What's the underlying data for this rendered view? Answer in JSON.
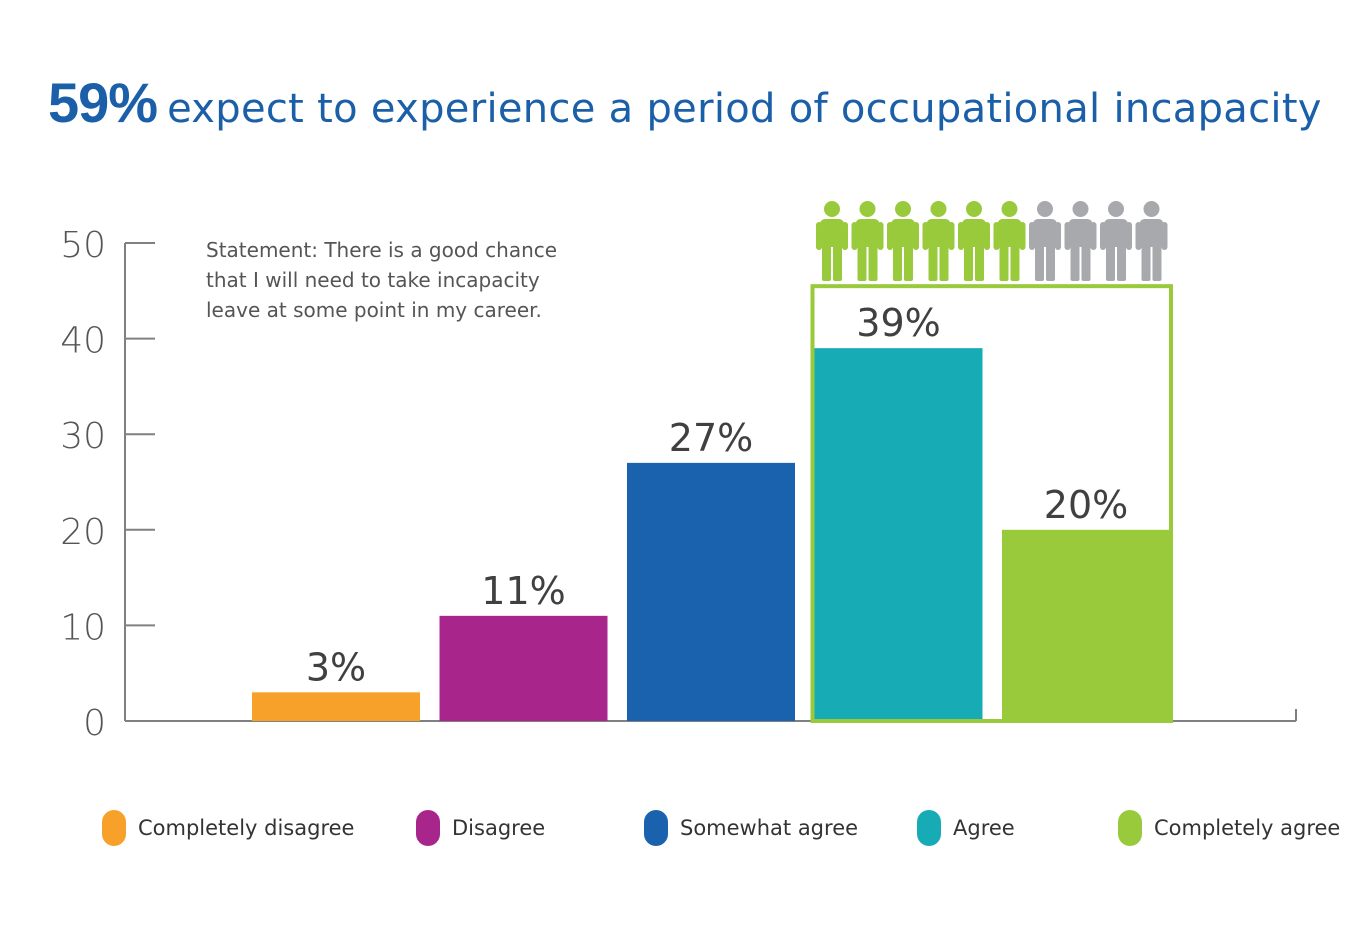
{
  "title": {
    "highlight": "59%",
    "text": "expect to experience a period of occupational incapacity"
  },
  "statement": [
    "Statement: There is a good chance",
    "that I will need to take incapacity",
    "leave at some point in my career."
  ],
  "colors": {
    "title": "#1a5fa8",
    "axis": "#808080",
    "highlight_box": "#99ca3c",
    "person_green": "#99ca3c",
    "person_grey": "#a7a9ac"
  },
  "people_icons": {
    "total": 10,
    "highlighted": 6,
    "icon": "person-icon"
  },
  "chart_data": {
    "type": "bar",
    "categories": [
      "Completely disagree",
      "Disagree",
      "Somewhat agree",
      "Agree",
      "Completely agree"
    ],
    "values": [
      3,
      11,
      27,
      39,
      20
    ],
    "value_labels": [
      "3%",
      "11%",
      "27%",
      "39%",
      "20%"
    ],
    "colors": [
      "#f7a12b",
      "#a8268c",
      "#1a62ad",
      "#17abb5",
      "#99ca3c"
    ],
    "ylim": [
      0,
      50
    ],
    "yticks": [
      0,
      10,
      20,
      30,
      40,
      50
    ],
    "ytick_labels": [
      "0",
      "10",
      "20",
      "30",
      "40",
      "50"
    ],
    "highlighted_categories": [
      "Agree",
      "Completely agree"
    ],
    "legend_position": "bottom",
    "grid": false
  }
}
